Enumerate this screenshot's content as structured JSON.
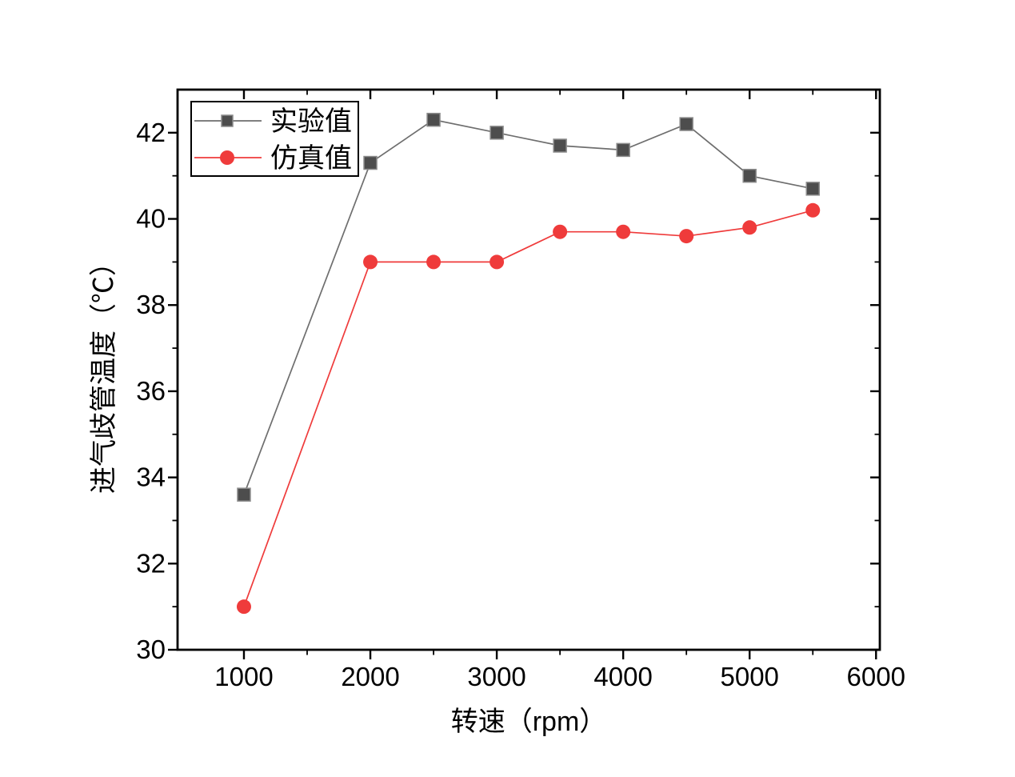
{
  "chart_data": {
    "type": "line",
    "title": "",
    "xlabel": "转速（rpm）",
    "ylabel": "进气歧管温度（℃）",
    "x": [
      1000,
      2000,
      2500,
      3000,
      3500,
      4000,
      4500,
      5000,
      5500
    ],
    "series": [
      {
        "name": "实验值",
        "marker": "square",
        "marker_fill": "#4d4d4d",
        "marker_edge": "#8c8c8c",
        "line_color": "#6e6e6e",
        "values": [
          33.6,
          41.3,
          42.3,
          42.0,
          41.7,
          41.6,
          42.2,
          41.0,
          40.7
        ]
      },
      {
        "name": "仿真值",
        "marker": "circle",
        "marker_fill": "#ef3b3b",
        "marker_edge": "#ef3b3b",
        "line_color": "#ef3b3b",
        "values": [
          31.0,
          39.0,
          39.0,
          39.0,
          39.7,
          39.7,
          39.6,
          39.8,
          40.2
        ]
      }
    ],
    "xlim": [
      475,
      6030
    ],
    "ylim": [
      30,
      43
    ],
    "x_major_ticks": [
      1000,
      2000,
      3000,
      4000,
      5000,
      6000
    ],
    "x_minor_ticks": [
      1500,
      2500,
      3500,
      4500,
      5500
    ],
    "y_major_ticks": [
      30,
      32,
      34,
      36,
      38,
      40,
      42
    ],
    "y_minor_ticks": [
      31,
      33,
      35,
      37,
      39,
      41
    ],
    "grid": false,
    "legend_position": "top-left",
    "axis_color": "#000000",
    "background": "#ffffff"
  },
  "legend": {
    "entries": [
      {
        "label": "实验值"
      },
      {
        "label": "仿真值"
      }
    ]
  }
}
